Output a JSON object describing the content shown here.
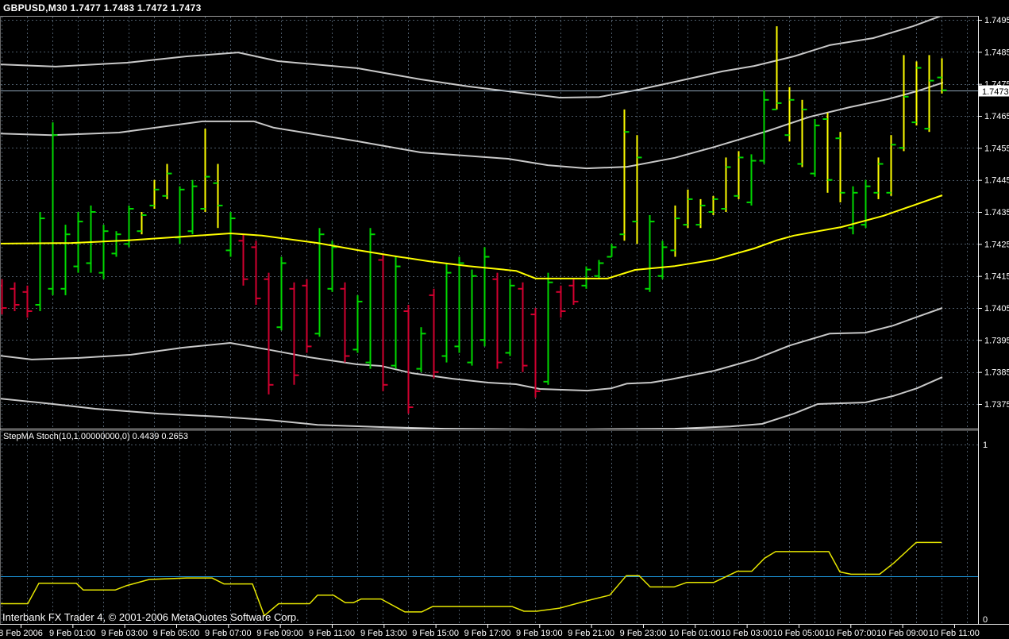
{
  "title": "GBPUSD,M30 1.7477 1.7483 1.7472 1.7473",
  "footer": {
    "copyright": "Interbank FX Trader 4, © 2001-2006 MetaQuotes Software Corp."
  },
  "price_axis": {
    "labels": [
      "1.7495",
      "1.7485",
      "1.7475",
      "1.7465",
      "1.7455",
      "1.7445",
      "1.7435",
      "1.7425",
      "1.7415",
      "1.7405",
      "1.7395",
      "1.7385",
      "1.7375"
    ],
    "values": [
      1.7495,
      1.7485,
      1.7475,
      1.7465,
      1.7455,
      1.7445,
      1.7435,
      1.7425,
      1.7415,
      1.7405,
      1.7395,
      1.7385,
      1.7375
    ],
    "current": "1.7473",
    "current_value": 1.7473
  },
  "time_axis": {
    "labels": [
      "8 Feb 2006",
      "9 Feb 01:00",
      "9 Feb 03:00",
      "9 Feb 05:00",
      "9 Feb 07:00",
      "9 Feb 09:00",
      "9 Feb 11:00",
      "9 Feb 13:00",
      "9 Feb 15:00",
      "9 Feb 17:00",
      "9 Feb 19:00",
      "9 Feb 21:00",
      "9 Feb 23:00",
      "10 Feb 01:00",
      "10 Feb 03:00",
      "10 Feb 05:00",
      "10 Feb 07:00",
      "10 Feb 09:00",
      "10 Feb 11:00"
    ]
  },
  "indicator": {
    "label": "StepMA Stoch(10,1.00000000,0) 0.4439 0.2653",
    "axis_labels": [
      "1",
      "0"
    ],
    "range": [
      0,
      1
    ],
    "values": [
      0.4439,
      0.2653
    ]
  },
  "colors": {
    "background": "#000000",
    "bar_up": "#00d800",
    "bar_down": "#d1002f",
    "bar_step": "#ffff00",
    "tick_green": "#00d800",
    "band": "#c8c8c8",
    "ma": "#ffff00",
    "grid": "#4c5a68",
    "price_line": "#90a4b8",
    "indicator_line": "#e6e600",
    "indicator_level": "#1e9ee8",
    "axis_text": "#ffffff",
    "border": "#9a9a9a",
    "price_box_bg": "#ffffff",
    "price_box_text": "#000000"
  },
  "chart_data": {
    "type": "bar",
    "subtype": "ohlc-bars",
    "symbol": "GBPUSD",
    "timeframe": "M30",
    "title": "GBPUSD,M30 1.7477 1.7483 1.7472 1.7473",
    "ylim": [
      1.7369,
      1.7498
    ],
    "grid": true,
    "last_price": 1.7473,
    "bars_hlocc": [
      [
        1.7414,
        1.7403,
        1.7412,
        1.7405,
        "R"
      ],
      [
        1.7413,
        1.7404,
        1.7411,
        1.7406,
        "R"
      ],
      [
        1.7412,
        1.7402,
        1.741,
        1.7404,
        "R"
      ],
      [
        1.7435,
        1.7404,
        1.7406,
        1.7433,
        "G"
      ],
      [
        1.7463,
        1.7409,
        1.7411,
        1.7459,
        "G"
      ],
      [
        1.7431,
        1.7409,
        1.7411,
        1.7428,
        "G"
      ],
      [
        1.7435,
        1.7416,
        1.7418,
        1.7432,
        "G"
      ],
      [
        1.7437,
        1.7416,
        1.7419,
        1.7435,
        "G"
      ],
      [
        1.7431,
        1.7414,
        1.7416,
        1.7429,
        "G"
      ],
      [
        1.7429,
        1.7421,
        1.7422,
        1.7428,
        "G"
      ],
      [
        1.7437,
        1.7424,
        1.7425,
        1.7436,
        "G"
      ],
      [
        1.7435,
        1.7428,
        1.7429,
        1.7434,
        "Y"
      ],
      [
        1.7445,
        1.7436,
        1.7437,
        1.7442,
        "Y"
      ],
      [
        1.745,
        1.7439,
        1.744,
        1.7447,
        "Y"
      ],
      [
        1.7443,
        1.7425,
        1.7427,
        1.7442,
        "G"
      ],
      [
        1.7445,
        1.7428,
        1.7429,
        1.7443,
        "G"
      ],
      [
        1.7461,
        1.7435,
        1.7436,
        1.7446,
        "Y"
      ],
      [
        1.745,
        1.743,
        1.7444,
        1.7437,
        "Y"
      ],
      [
        1.7435,
        1.7421,
        1.7423,
        1.7433,
        "G"
      ],
      [
        1.7428,
        1.7412,
        1.7426,
        1.7414,
        "R"
      ],
      [
        1.7426,
        1.7406,
        1.7424,
        1.7408,
        "R"
      ],
      [
        1.7416,
        1.7378,
        1.7414,
        1.7381,
        "R"
      ],
      [
        1.7421,
        1.7398,
        1.7399,
        1.7419,
        "G"
      ],
      [
        1.7413,
        1.7381,
        1.7411,
        1.7384,
        "R"
      ],
      [
        1.7414,
        1.7391,
        1.7412,
        1.7393,
        "R"
      ],
      [
        1.743,
        1.7396,
        1.7397,
        1.7428,
        "G"
      ],
      [
        1.7426,
        1.741,
        1.7411,
        1.7424,
        "G"
      ],
      [
        1.7413,
        1.7388,
        1.7411,
        1.739,
        "R"
      ],
      [
        1.7409,
        1.7391,
        1.7392,
        1.7407,
        "G"
      ],
      [
        1.743,
        1.7386,
        1.7388,
        1.7428,
        "G"
      ],
      [
        1.7422,
        1.7379,
        1.742,
        1.7381,
        "R"
      ],
      [
        1.7421,
        1.7386,
        1.7387,
        1.7418,
        "G"
      ],
      [
        1.7406,
        1.7372,
        1.7404,
        1.7374,
        "R"
      ],
      [
        1.7399,
        1.7385,
        1.7386,
        1.7397,
        "G"
      ],
      [
        1.7411,
        1.7383,
        1.7409,
        1.7385,
        "R"
      ],
      [
        1.7419,
        1.7388,
        1.739,
        1.7416,
        "G"
      ],
      [
        1.7421,
        1.7391,
        1.7393,
        1.7419,
        "G"
      ],
      [
        1.7417,
        1.7387,
        1.7388,
        1.7415,
        "G"
      ],
      [
        1.7424,
        1.7393,
        1.7395,
        1.7421,
        "G"
      ],
      [
        1.7416,
        1.7386,
        1.7414,
        1.7388,
        "R"
      ],
      [
        1.7414,
        1.739,
        1.7391,
        1.7412,
        "G"
      ],
      [
        1.7413,
        1.7385,
        1.7411,
        1.7387,
        "R"
      ],
      [
        1.7405,
        1.7377,
        1.7403,
        1.7379,
        "R"
      ],
      [
        1.7416,
        1.7381,
        1.7382,
        1.7413,
        "G"
      ],
      [
        1.7412,
        1.7402,
        1.741,
        1.7404,
        "R"
      ],
      [
        1.7414,
        1.7406,
        1.7412,
        1.7407,
        "R"
      ],
      [
        1.7418,
        1.7411,
        1.7412,
        1.7417,
        "G"
      ],
      [
        1.742,
        1.7414,
        1.7415,
        1.7419,
        "G"
      ],
      [
        1.7425,
        1.7421,
        1.7421,
        1.7424,
        "G"
      ],
      [
        1.7467,
        1.7426,
        1.7428,
        1.746,
        "Y"
      ],
      [
        1.7459,
        1.7425,
        1.7432,
        1.7452,
        "Y"
      ],
      [
        1.7434,
        1.741,
        1.7411,
        1.7432,
        "G"
      ],
      [
        1.7426,
        1.7414,
        1.7415,
        1.7424,
        "G"
      ],
      [
        1.7437,
        1.7421,
        1.7423,
        1.7433,
        "Y"
      ],
      [
        1.7442,
        1.743,
        1.7431,
        1.7439,
        "Y"
      ],
      [
        1.7439,
        1.743,
        1.7431,
        1.7437,
        "Y"
      ],
      [
        1.744,
        1.7434,
        1.7435,
        1.7439,
        "Y"
      ],
      [
        1.7452,
        1.7435,
        1.7436,
        1.7449,
        "Y"
      ],
      [
        1.7454,
        1.7439,
        1.744,
        1.7452,
        "Y"
      ],
      [
        1.7453,
        1.7437,
        1.7438,
        1.7451,
        "G"
      ],
      [
        1.7473,
        1.745,
        1.7451,
        1.747,
        "G"
      ],
      [
        1.7493,
        1.7467,
        1.7467,
        1.7469,
        "Y"
      ],
      [
        1.7474,
        1.7457,
        1.7459,
        1.747,
        "Y"
      ],
      [
        1.747,
        1.7449,
        1.745,
        1.7467,
        "Y"
      ],
      [
        1.7464,
        1.7446,
        1.7447,
        1.7462,
        "G"
      ],
      [
        1.7466,
        1.7441,
        1.7464,
        1.7445,
        "Y"
      ],
      [
        1.746,
        1.7438,
        1.7458,
        1.7441,
        "Y"
      ],
      [
        1.7443,
        1.7428,
        1.743,
        1.7441,
        "G"
      ],
      [
        1.7445,
        1.743,
        1.7431,
        1.7443,
        "G"
      ],
      [
        1.7452,
        1.7439,
        1.7441,
        1.745,
        "Y"
      ],
      [
        1.7459,
        1.744,
        1.7441,
        1.7456,
        "Y"
      ],
      [
        1.7484,
        1.7454,
        1.7455,
        1.7471,
        "Y"
      ],
      [
        1.7482,
        1.7462,
        1.7463,
        1.748,
        "Y"
      ],
      [
        1.7484,
        1.746,
        1.7461,
        1.7476,
        "Y"
      ],
      [
        1.7483,
        1.7472,
        1.7477,
        1.7473,
        "Y"
      ]
    ],
    "overlays": {
      "band_upper_outer": [
        [
          0,
          1.74811
        ],
        [
          70,
          1.74804
        ],
        [
          160,
          1.74816
        ],
        [
          235,
          1.74836
        ],
        [
          300,
          1.74848
        ],
        [
          350,
          1.74821
        ],
        [
          450,
          1.74799
        ],
        [
          530,
          1.74764
        ],
        [
          590,
          1.74742
        ],
        [
          650,
          1.74724
        ],
        [
          705,
          1.74707
        ],
        [
          755,
          1.74709
        ],
        [
          805,
          1.74732
        ],
        [
          855,
          1.74759
        ],
        [
          910,
          1.74789
        ],
        [
          950,
          1.74806
        ],
        [
          1000,
          1.74836
        ],
        [
          1045,
          1.74871
        ],
        [
          1100,
          1.74893
        ],
        [
          1150,
          1.7493
        ],
        [
          1186,
          1.74963
        ]
      ],
      "band_upper_inner": [
        [
          0,
          1.74595
        ],
        [
          65,
          1.7459
        ],
        [
          150,
          1.74598
        ],
        [
          255,
          1.74633
        ],
        [
          320,
          1.74633
        ],
        [
          345,
          1.74613
        ],
        [
          450,
          1.74571
        ],
        [
          530,
          1.74536
        ],
        [
          640,
          1.74516
        ],
        [
          690,
          1.74496
        ],
        [
          739,
          1.74486
        ],
        [
          790,
          1.74491
        ],
        [
          850,
          1.74519
        ],
        [
          900,
          1.74553
        ],
        [
          967,
          1.74603
        ],
        [
          1020,
          1.74647
        ],
        [
          1070,
          1.74677
        ],
        [
          1118,
          1.74702
        ],
        [
          1155,
          1.74727
        ],
        [
          1188,
          1.74754
        ]
      ],
      "moving_average": [
        [
          0,
          1.74251
        ],
        [
          90,
          1.74253
        ],
        [
          160,
          1.74261
        ],
        [
          230,
          1.74273
        ],
        [
          290,
          1.74283
        ],
        [
          330,
          1.74276
        ],
        [
          400,
          1.74253
        ],
        [
          450,
          1.74231
        ],
        [
          500,
          1.74211
        ],
        [
          540,
          1.74196
        ],
        [
          590,
          1.74181
        ],
        [
          650,
          1.74166
        ],
        [
          675,
          1.74142
        ],
        [
          765,
          1.74142
        ],
        [
          800,
          1.74169
        ],
        [
          850,
          1.74181
        ],
        [
          900,
          1.74201
        ],
        [
          950,
          1.74236
        ],
        [
          978,
          1.74261
        ],
        [
          1000,
          1.74276
        ],
        [
          1060,
          1.74303
        ],
        [
          1113,
          1.74338
        ],
        [
          1150,
          1.7437
        ],
        [
          1187,
          1.74402
        ]
      ],
      "band_lower_inner": [
        [
          0,
          1.73901
        ],
        [
          40,
          1.73889
        ],
        [
          100,
          1.73894
        ],
        [
          165,
          1.73904
        ],
        [
          230,
          1.73926
        ],
        [
          290,
          1.73941
        ],
        [
          340,
          1.73919
        ],
        [
          390,
          1.73896
        ],
        [
          450,
          1.73874
        ],
        [
          480,
          1.73869
        ],
        [
          520,
          1.73846
        ],
        [
          570,
          1.73829
        ],
        [
          615,
          1.73817
        ],
        [
          650,
          1.73812
        ],
        [
          680,
          1.73797
        ],
        [
          740,
          1.73792
        ],
        [
          770,
          1.73799
        ],
        [
          790,
          1.73814
        ],
        [
          820,
          1.73817
        ],
        [
          845,
          1.73827
        ],
        [
          900,
          1.73854
        ],
        [
          950,
          1.73889
        ],
        [
          995,
          1.73933
        ],
        [
          1045,
          1.7397
        ],
        [
          1090,
          1.73973
        ],
        [
          1125,
          1.73995
        ],
        [
          1155,
          1.74022
        ],
        [
          1187,
          1.7405
        ]
      ],
      "band_lower_outer": [
        [
          0,
          1.73767
        ],
        [
          60,
          1.73752
        ],
        [
          120,
          1.73735
        ],
        [
          200,
          1.7372
        ],
        [
          280,
          1.7371
        ],
        [
          340,
          1.737
        ],
        [
          400,
          1.73685
        ],
        [
          480,
          1.73678
        ],
        [
          560,
          1.73673
        ],
        [
          700,
          1.7367
        ],
        [
          850,
          1.73673
        ],
        [
          920,
          1.7368
        ],
        [
          960,
          1.73688
        ],
        [
          1000,
          1.7372
        ],
        [
          1030,
          1.7375
        ],
        [
          1090,
          1.73755
        ],
        [
          1125,
          1.73775
        ],
        [
          1155,
          1.73799
        ],
        [
          1187,
          1.73834
        ]
      ]
    },
    "indicator": {
      "name": "StepMA Stoch(10,1.00000000,0)",
      "current_values": [
        0.4439,
        0.2653
      ],
      "level_line": 0.2653,
      "line_points": [
        [
          0,
          0.113
        ],
        [
          35,
          0.113
        ],
        [
          49,
          0.227
        ],
        [
          96,
          0.227
        ],
        [
          105,
          0.189
        ],
        [
          145,
          0.189
        ],
        [
          160,
          0.214
        ],
        [
          188,
          0.248
        ],
        [
          235,
          0.256
        ],
        [
          267,
          0.256
        ],
        [
          282,
          0.223
        ],
        [
          318,
          0.223
        ],
        [
          333,
          0.046
        ],
        [
          351,
          0.113
        ],
        [
          390,
          0.113
        ],
        [
          400,
          0.16
        ],
        [
          420,
          0.16
        ],
        [
          435,
          0.118
        ],
        [
          445,
          0.118
        ],
        [
          455,
          0.139
        ],
        [
          480,
          0.139
        ],
        [
          510,
          0.067
        ],
        [
          531,
          0.067
        ],
        [
          545,
          0.097
        ],
        [
          645,
          0.097
        ],
        [
          660,
          0.071
        ],
        [
          676,
          0.071
        ],
        [
          705,
          0.088
        ],
        [
          740,
          0.13
        ],
        [
          768,
          0.16
        ],
        [
          789,
          0.269
        ],
        [
          805,
          0.269
        ],
        [
          819,
          0.206
        ],
        [
          849,
          0.206
        ],
        [
          865,
          0.231
        ],
        [
          899,
          0.231
        ],
        [
          929,
          0.294
        ],
        [
          947,
          0.294
        ],
        [
          963,
          0.366
        ],
        [
          977,
          0.403
        ],
        [
          1044,
          0.403
        ],
        [
          1058,
          0.29
        ],
        [
          1072,
          0.277
        ],
        [
          1108,
          0.277
        ],
        [
          1126,
          0.34
        ],
        [
          1154,
          0.454
        ],
        [
          1186,
          0.454
        ]
      ]
    }
  }
}
